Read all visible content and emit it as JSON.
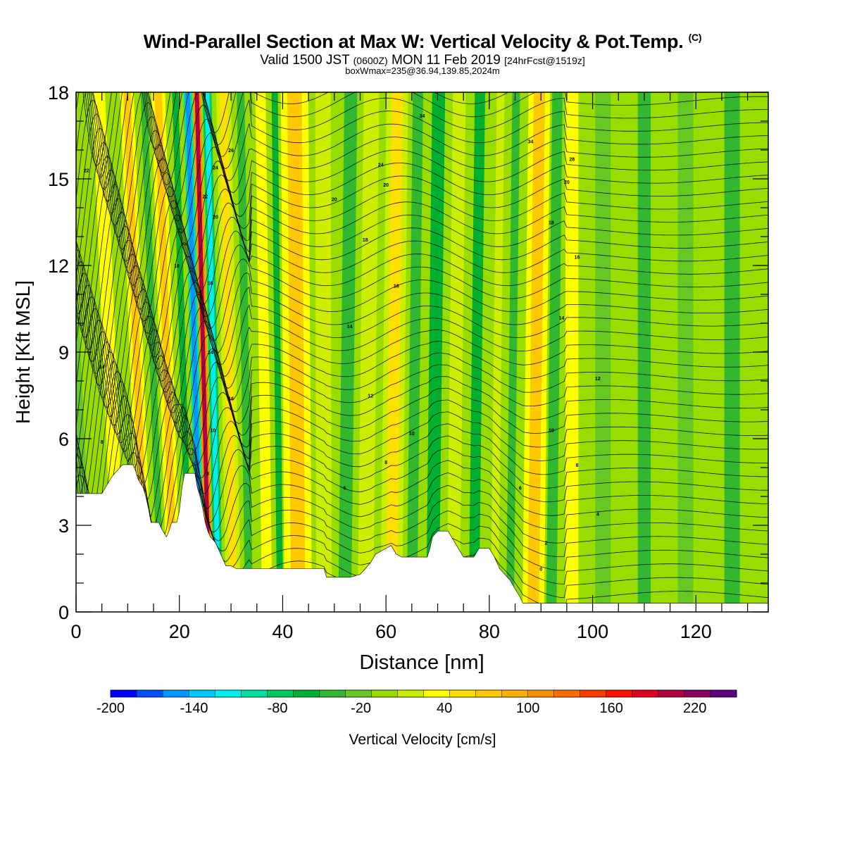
{
  "header": {
    "title": "Wind-Parallel Section at Max W: Vertical Velocity & Pot.Temp.",
    "title_unit": "(C)",
    "valid_prefix": "Valid 1500 JST",
    "valid_utc": "(0600Z)",
    "valid_date": "MON 11 Feb 2019",
    "forecast": "[24hrFcst@1519z]",
    "box_info": "boxWmax=235@36.94,139.85,2024m"
  },
  "chart_data": {
    "type": "heatmap",
    "xlabel": "Distance [nm]",
    "ylabel": "Height [Kft MSL]",
    "xlim": [
      0,
      134
    ],
    "ylim": [
      0,
      18
    ],
    "x_ticks": [
      0,
      20,
      40,
      60,
      80,
      100,
      120
    ],
    "y_ticks": [
      0,
      3,
      6,
      9,
      12,
      15,
      18
    ],
    "colorbar": {
      "label": "Vertical Velocity [cm/s]",
      "min": -200,
      "max": 250,
      "step": 20,
      "tick_labels": [
        -200,
        -140,
        -80,
        -20,
        40,
        100,
        160,
        220
      ],
      "colors": [
        "#0000ff",
        "#0050ff",
        "#0096ff",
        "#00c8ff",
        "#00f0f0",
        "#00e0a0",
        "#00c860",
        "#00b030",
        "#30b830",
        "#66c820",
        "#99dd00",
        "#ccee00",
        "#ffff00",
        "#ffe000",
        "#ffc800",
        "#ffae00",
        "#ff9000",
        "#ff6c00",
        "#ff3c00",
        "#ff1000",
        "#e00020",
        "#b00040",
        "#880060",
        "#600080"
      ]
    },
    "terrain_kft": [
      [
        0,
        4.1
      ],
      [
        5,
        4.1
      ],
      [
        6,
        4.4
      ],
      [
        7,
        4.7
      ],
      [
        8,
        4.9
      ],
      [
        9,
        5.1
      ],
      [
        11,
        5.1
      ],
      [
        11.5,
        4.9
      ],
      [
        12,
        4.6
      ],
      [
        13,
        4.3
      ],
      [
        13.5,
        4.0
      ],
      [
        14,
        3.6
      ],
      [
        14.5,
        3.1
      ],
      [
        16,
        3.1
      ],
      [
        16.5,
        2.9
      ],
      [
        17.5,
        2.6
      ],
      [
        18,
        2.8
      ],
      [
        18.5,
        3.1
      ],
      [
        19.5,
        3.1
      ],
      [
        20,
        3.5
      ],
      [
        20.5,
        4.3
      ],
      [
        21,
        4.8
      ],
      [
        23,
        4.8
      ],
      [
        23.5,
        4.3
      ],
      [
        24,
        4.0
      ],
      [
        24.5,
        3.6
      ],
      [
        25,
        3.1
      ],
      [
        25.5,
        2.8
      ],
      [
        26,
        2.6
      ],
      [
        27,
        2.4
      ],
      [
        28,
        2.0
      ],
      [
        29,
        1.6
      ],
      [
        30,
        1.6
      ],
      [
        31,
        1.5
      ],
      [
        48,
        1.5
      ],
      [
        48.5,
        1.2
      ],
      [
        53,
        1.2
      ],
      [
        55,
        1.3
      ],
      [
        56,
        1.5
      ],
      [
        57,
        1.7
      ],
      [
        58,
        2.0
      ],
      [
        60,
        2.2
      ],
      [
        61,
        2.3
      ],
      [
        62,
        2.0
      ],
      [
        63,
        1.9
      ],
      [
        68,
        1.9
      ],
      [
        68.5,
        2.2
      ],
      [
        69,
        2.6
      ],
      [
        70,
        2.8
      ],
      [
        72,
        2.8
      ],
      [
        73,
        2.5
      ],
      [
        74,
        2.2
      ],
      [
        75,
        1.9
      ],
      [
        77,
        1.9
      ],
      [
        78,
        2.2
      ],
      [
        80,
        2.2
      ],
      [
        81,
        1.9
      ],
      [
        82,
        1.5
      ],
      [
        83,
        1.3
      ],
      [
        84,
        1.1
      ],
      [
        85,
        0.8
      ],
      [
        86,
        0.5
      ],
      [
        86.5,
        0.3
      ],
      [
        87,
        0.3
      ],
      [
        134,
        0.3
      ]
    ],
    "velocity_bands": [
      {
        "x": 2,
        "w": 2.5,
        "v": -15
      },
      {
        "x": 8.5,
        "w": 2.5,
        "v": 40
      },
      {
        "x": 13.5,
        "w": 1.4,
        "v": 95
      },
      {
        "x": 16.5,
        "w": 1.3,
        "v": -40
      },
      {
        "x": 19,
        "w": 1.4,
        "v": 90
      },
      {
        "x": 22,
        "w": 1.2,
        "v": -50
      },
      {
        "x": 24.2,
        "w": 0.9,
        "v": -160
      },
      {
        "x": 25.8,
        "w": 0.8,
        "v": 220
      },
      {
        "x": 27.6,
        "w": 0.9,
        "v": -110
      },
      {
        "x": 30.5,
        "w": 1.5,
        "v": 70
      },
      {
        "x": 33.5,
        "w": 1.5,
        "v": -35
      },
      {
        "x": 37,
        "w": 2.0,
        "v": 40
      },
      {
        "x": 39.5,
        "w": 1.2,
        "v": -55
      },
      {
        "x": 43,
        "w": 2.8,
        "v": 85
      },
      {
        "x": 48,
        "w": 3.0,
        "v": 20
      },
      {
        "x": 52,
        "w": 2.5,
        "v": -40
      },
      {
        "x": 56,
        "w": 3.0,
        "v": 20
      },
      {
        "x": 61,
        "w": 2.2,
        "v": 70
      },
      {
        "x": 65,
        "w": 2.0,
        "v": -30
      },
      {
        "x": 69,
        "w": 2.5,
        "v": -50
      },
      {
        "x": 73,
        "w": 2.5,
        "v": 20
      },
      {
        "x": 77,
        "w": 2.0,
        "v": -45
      },
      {
        "x": 81,
        "w": 1.5,
        "v": 30
      },
      {
        "x": 84,
        "w": 1.5,
        "v": -40
      },
      {
        "x": 88.5,
        "w": 2.2,
        "v": 95
      },
      {
        "x": 92,
        "w": 2.0,
        "v": -25
      },
      {
        "x": 96,
        "w": 2.5,
        "v": 40
      },
      {
        "x": 102,
        "w": 3.0,
        "v": -10
      },
      {
        "x": 110,
        "w": 2.5,
        "v": -30
      },
      {
        "x": 118,
        "w": 3.0,
        "v": -10
      },
      {
        "x": 127,
        "w": 3.0,
        "v": -30
      }
    ],
    "contour_labels": [
      {
        "text": "22",
        "x": 2,
        "y": 15.3
      },
      {
        "text": "14",
        "x": 5,
        "y": 8.5
      },
      {
        "text": "8",
        "x": 5,
        "y": 5.9
      },
      {
        "text": "18",
        "x": 19.5,
        "y": 12.0
      },
      {
        "text": "22",
        "x": 25,
        "y": 14.4
      },
      {
        "text": "24",
        "x": 27,
        "y": 15.4
      },
      {
        "text": "26",
        "x": 30,
        "y": 16.0
      },
      {
        "text": "20",
        "x": 27,
        "y": 13.7
      },
      {
        "text": "16",
        "x": 26,
        "y": 11.4
      },
      {
        "text": "14",
        "x": 26,
        "y": 9.0
      },
      {
        "text": "10",
        "x": 26.5,
        "y": 6.3
      },
      {
        "text": "16",
        "x": 30,
        "y": 7.4
      },
      {
        "text": "8",
        "x": 25.5,
        "y": 4.8
      },
      {
        "text": "34",
        "x": 67,
        "y": 17.2
      },
      {
        "text": "24",
        "x": 59,
        "y": 15.5
      },
      {
        "text": "20",
        "x": 60,
        "y": 14.8
      },
      {
        "text": "20",
        "x": 50,
        "y": 14.3
      },
      {
        "text": "18",
        "x": 56,
        "y": 12.9
      },
      {
        "text": "16",
        "x": 62,
        "y": 11.3
      },
      {
        "text": "14",
        "x": 53,
        "y": 9.9
      },
      {
        "text": "12",
        "x": 57,
        "y": 7.5
      },
      {
        "text": "10",
        "x": 65,
        "y": 6.2
      },
      {
        "text": "8",
        "x": 60,
        "y": 5.2
      },
      {
        "text": "6",
        "x": 52,
        "y": 4.3
      },
      {
        "text": "34",
        "x": 88,
        "y": 16.3
      },
      {
        "text": "28",
        "x": 96,
        "y": 15.7
      },
      {
        "text": "20",
        "x": 95,
        "y": 14.9
      },
      {
        "text": "18",
        "x": 92,
        "y": 13.5
      },
      {
        "text": "16",
        "x": 97,
        "y": 12.3
      },
      {
        "text": "14",
        "x": 94,
        "y": 10.2
      },
      {
        "text": "12",
        "x": 101,
        "y": 8.1
      },
      {
        "text": "10",
        "x": 92,
        "y": 6.3
      },
      {
        "text": "8",
        "x": 97,
        "y": 5.1
      },
      {
        "text": "6",
        "x": 86,
        "y": 4.3
      },
      {
        "text": "4",
        "x": 101,
        "y": 3.4
      },
      {
        "text": "2",
        "x": 91,
        "y": 2.4
      },
      {
        "text": "0",
        "x": 90,
        "y": 1.5
      }
    ]
  }
}
